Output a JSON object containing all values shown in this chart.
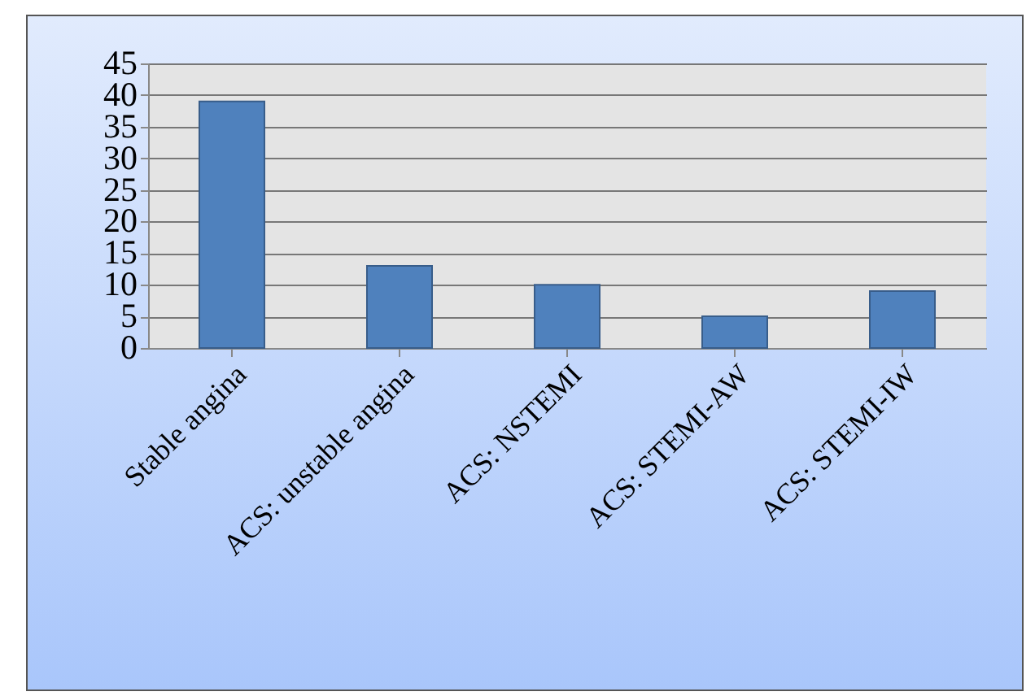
{
  "chart_data": {
    "type": "bar",
    "categories": [
      "Stable angina",
      "ACS: unstable angina",
      "ACS: NSTEMI",
      "ACS: STEMI-AW",
      "ACS: STEMI-IW"
    ],
    "values": [
      39,
      13,
      10,
      5,
      9
    ],
    "color": "#4f81bd",
    "ylim": [
      0,
      45
    ],
    "yticks": [
      0,
      5,
      10,
      15,
      20,
      25,
      30,
      35,
      40,
      45
    ],
    "grid": "y"
  }
}
